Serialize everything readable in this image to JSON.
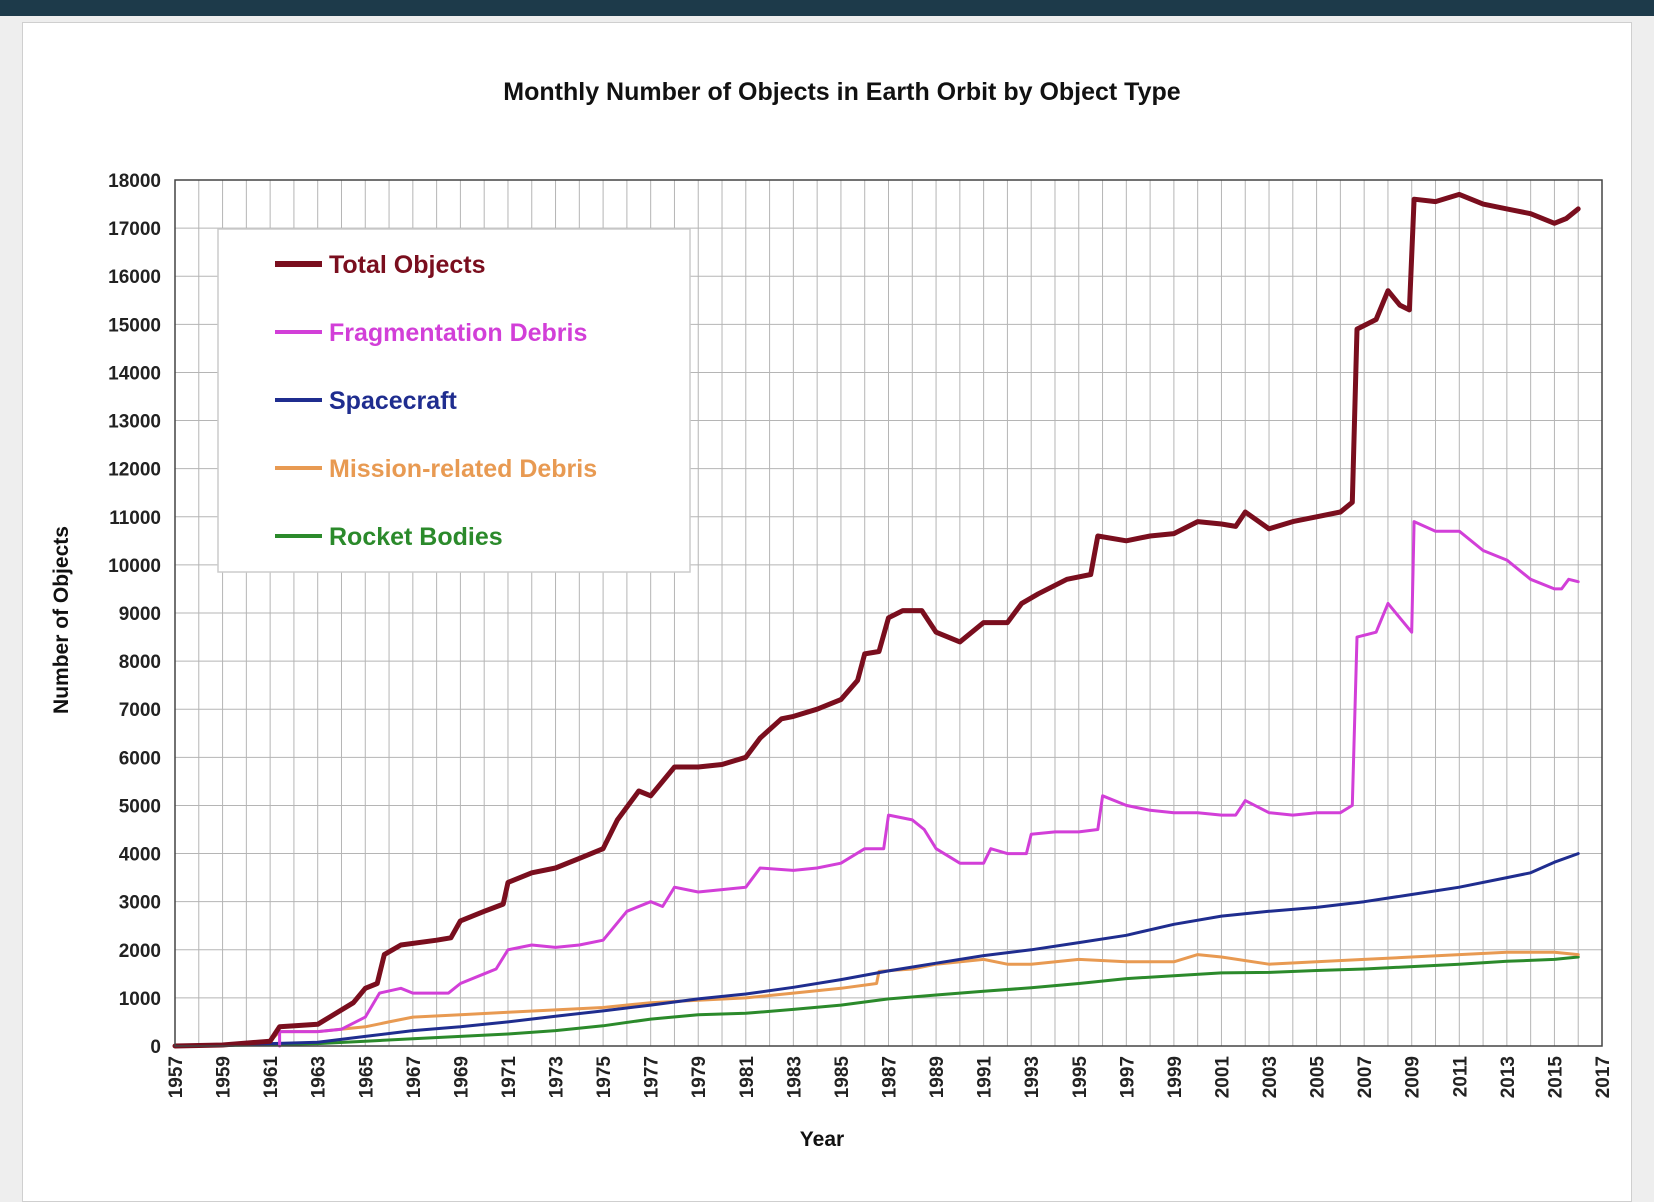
{
  "chart_data": {
    "type": "line",
    "title": "Monthly Number of Objects in Earth Orbit by Object Type",
    "xlabel": "Year",
    "ylabel": "Number of Objects",
    "xlim": [
      1957,
      2017
    ],
    "ylim": [
      0,
      18000
    ],
    "x_ticks": [
      "1957",
      "1959",
      "1961",
      "1963",
      "1965",
      "1967",
      "1969",
      "1971",
      "1973",
      "1975",
      "1977",
      "1979",
      "1981",
      "1983",
      "1985",
      "1987",
      "1989",
      "1991",
      "1993",
      "1995",
      "1997",
      "1999",
      "2001",
      "2003",
      "2005",
      "2007",
      "2009",
      "2011",
      "2013",
      "2015",
      "2017"
    ],
    "y_ticks": [
      "0",
      "1000",
      "2000",
      "3000",
      "4000",
      "5000",
      "6000",
      "7000",
      "8000",
      "9000",
      "10000",
      "11000",
      "12000",
      "13000",
      "14000",
      "15000",
      "16000",
      "17000",
      "18000"
    ],
    "grid": true,
    "legend_position": "top-left",
    "series": [
      {
        "name": "Total Objects",
        "color": "#7a0e1e",
        "width": 5,
        "points": [
          [
            1957,
            0
          ],
          [
            1959,
            20
          ],
          [
            1961,
            100
          ],
          [
            1961.4,
            400
          ],
          [
            1963,
            450
          ],
          [
            1963.5,
            600
          ],
          [
            1964.5,
            900
          ],
          [
            1965,
            1200
          ],
          [
            1965.5,
            1300
          ],
          [
            1965.8,
            1900
          ],
          [
            1966.5,
            2100
          ],
          [
            1968,
            2200
          ],
          [
            1968.6,
            2250
          ],
          [
            1969,
            2600
          ],
          [
            1970,
            2800
          ],
          [
            1970.8,
            2950
          ],
          [
            1971,
            3400
          ],
          [
            1972,
            3600
          ],
          [
            1973,
            3700
          ],
          [
            1974,
            3900
          ],
          [
            1975,
            4100
          ],
          [
            1975.6,
            4700
          ],
          [
            1976.5,
            5300
          ],
          [
            1977,
            5200
          ],
          [
            1978,
            5800
          ],
          [
            1979,
            5800
          ],
          [
            1980,
            5850
          ],
          [
            1981,
            6000
          ],
          [
            1981.6,
            6400
          ],
          [
            1982.5,
            6800
          ],
          [
            1983,
            6850
          ],
          [
            1984,
            7000
          ],
          [
            1985,
            7200
          ],
          [
            1985.7,
            7600
          ],
          [
            1986,
            8150
          ],
          [
            1986.6,
            8200
          ],
          [
            1987,
            8900
          ],
          [
            1987.6,
            9050
          ],
          [
            1988.4,
            9050
          ],
          [
            1989,
            8600
          ],
          [
            1990,
            8400
          ],
          [
            1991,
            8800
          ],
          [
            1992,
            8800
          ],
          [
            1992.6,
            9200
          ],
          [
            1993.3,
            9400
          ],
          [
            1994.5,
            9700
          ],
          [
            1995.5,
            9800
          ],
          [
            1995.8,
            10600
          ],
          [
            1997,
            10500
          ],
          [
            1998,
            10600
          ],
          [
            1999,
            10650
          ],
          [
            2000,
            10900
          ],
          [
            2001,
            10850
          ],
          [
            2001.6,
            10800
          ],
          [
            2002,
            11100
          ],
          [
            2003,
            10750
          ],
          [
            2004,
            10900
          ],
          [
            2005,
            11000
          ],
          [
            2006,
            11100
          ],
          [
            2006.5,
            11300
          ],
          [
            2006.7,
            14900
          ],
          [
            2007.5,
            15100
          ],
          [
            2008,
            15700
          ],
          [
            2008.5,
            15400
          ],
          [
            2008.9,
            15300
          ],
          [
            2009.1,
            17600
          ],
          [
            2010,
            17550
          ],
          [
            2011,
            17700
          ],
          [
            2012,
            17500
          ],
          [
            2013,
            17400
          ],
          [
            2014,
            17300
          ],
          [
            2015,
            17100
          ],
          [
            2015.5,
            17200
          ],
          [
            2016,
            17400
          ]
        ]
      },
      {
        "name": "Fragmentation Debris",
        "color": "#d23fd8",
        "width": 3,
        "points": [
          [
            1961.4,
            0
          ],
          [
            1961.4,
            300
          ],
          [
            1963,
            300
          ],
          [
            1964,
            350
          ],
          [
            1965,
            600
          ],
          [
            1965.6,
            1100
          ],
          [
            1966.5,
            1200
          ],
          [
            1967,
            1100
          ],
          [
            1968.5,
            1100
          ],
          [
            1969,
            1300
          ],
          [
            1970,
            1500
          ],
          [
            1970.5,
            1600
          ],
          [
            1971,
            2000
          ],
          [
            1972,
            2100
          ],
          [
            1973,
            2050
          ],
          [
            1974,
            2100
          ],
          [
            1975,
            2200
          ],
          [
            1976,
            2800
          ],
          [
            1977,
            3000
          ],
          [
            1977.5,
            2900
          ],
          [
            1978,
            3300
          ],
          [
            1979,
            3200
          ],
          [
            1980,
            3250
          ],
          [
            1981,
            3300
          ],
          [
            1981.6,
            3700
          ],
          [
            1983,
            3650
          ],
          [
            1984,
            3700
          ],
          [
            1985,
            3800
          ],
          [
            1986,
            4100
          ],
          [
            1986.8,
            4100
          ],
          [
            1987,
            4800
          ],
          [
            1988,
            4700
          ],
          [
            1988.5,
            4500
          ],
          [
            1989,
            4100
          ],
          [
            1990,
            3800
          ],
          [
            1991,
            3800
          ],
          [
            1991.3,
            4100
          ],
          [
            1992,
            4000
          ],
          [
            1992.8,
            4000
          ],
          [
            1993,
            4400
          ],
          [
            1994,
            4450
          ],
          [
            1995,
            4450
          ],
          [
            1995.8,
            4500
          ],
          [
            1996,
            5200
          ],
          [
            1997,
            5000
          ],
          [
            1998,
            4900
          ],
          [
            1999,
            4850
          ],
          [
            2000,
            4850
          ],
          [
            2001,
            4800
          ],
          [
            2001.6,
            4800
          ],
          [
            2002,
            5100
          ],
          [
            2003,
            4850
          ],
          [
            2004,
            4800
          ],
          [
            2005,
            4850
          ],
          [
            2006,
            4850
          ],
          [
            2006.5,
            5000
          ],
          [
            2006.7,
            8500
          ],
          [
            2007.5,
            8600
          ],
          [
            2008,
            9200
          ],
          [
            2008.5,
            8900
          ],
          [
            2009,
            8600
          ],
          [
            2009.1,
            10900
          ],
          [
            2010,
            10700
          ],
          [
            2011,
            10700
          ],
          [
            2012,
            10300
          ],
          [
            2013,
            10100
          ],
          [
            2014,
            9700
          ],
          [
            2015,
            9500
          ],
          [
            2015.3,
            9500
          ],
          [
            2015.6,
            9700
          ],
          [
            2016,
            9650
          ]
        ]
      },
      {
        "name": "Spacecraft",
        "color": "#1f2d8f",
        "width": 3,
        "points": [
          [
            1957,
            0
          ],
          [
            1959,
            10
          ],
          [
            1961,
            50
          ],
          [
            1963,
            80
          ],
          [
            1965,
            200
          ],
          [
            1967,
            320
          ],
          [
            1969,
            400
          ],
          [
            1971,
            500
          ],
          [
            1973,
            620
          ],
          [
            1975,
            730
          ],
          [
            1977,
            850
          ],
          [
            1979,
            980
          ],
          [
            1981,
            1080
          ],
          [
            1983,
            1220
          ],
          [
            1985,
            1380
          ],
          [
            1987,
            1560
          ],
          [
            1989,
            1720
          ],
          [
            1991,
            1880
          ],
          [
            1993,
            2000
          ],
          [
            1995,
            2150
          ],
          [
            1997,
            2300
          ],
          [
            1999,
            2530
          ],
          [
            2001,
            2700
          ],
          [
            2003,
            2800
          ],
          [
            2005,
            2880
          ],
          [
            2007,
            3000
          ],
          [
            2009,
            3150
          ],
          [
            2011,
            3300
          ],
          [
            2013,
            3500
          ],
          [
            2014,
            3600
          ],
          [
            2015,
            3820
          ],
          [
            2016,
            4000
          ]
        ]
      },
      {
        "name": "Mission-related Debris",
        "color": "#e89a52",
        "width": 3,
        "points": [
          [
            1957,
            0
          ],
          [
            1959,
            20
          ],
          [
            1961,
            100
          ],
          [
            1961.4,
            300
          ],
          [
            1963,
            300
          ],
          [
            1965,
            400
          ],
          [
            1966,
            500
          ],
          [
            1967,
            600
          ],
          [
            1969,
            650
          ],
          [
            1971,
            700
          ],
          [
            1973,
            750
          ],
          [
            1975,
            800
          ],
          [
            1977,
            900
          ],
          [
            1979,
            950
          ],
          [
            1981,
            1000
          ],
          [
            1983,
            1100
          ],
          [
            1985,
            1200
          ],
          [
            1986.5,
            1300
          ],
          [
            1986.6,
            1550
          ],
          [
            1988,
            1600
          ],
          [
            1989,
            1700
          ],
          [
            1991,
            1800
          ],
          [
            1992,
            1700
          ],
          [
            1993,
            1700
          ],
          [
            1995,
            1800
          ],
          [
            1997,
            1750
          ],
          [
            1999,
            1750
          ],
          [
            2000,
            1900
          ],
          [
            2001,
            1850
          ],
          [
            2003,
            1700
          ],
          [
            2005,
            1750
          ],
          [
            2007,
            1800
          ],
          [
            2009,
            1850
          ],
          [
            2011,
            1900
          ],
          [
            2013,
            1950
          ],
          [
            2015,
            1950
          ],
          [
            2016,
            1900
          ]
        ]
      },
      {
        "name": "Rocket Bodies",
        "color": "#2b8a2b",
        "width": 3,
        "points": [
          [
            1957,
            0
          ],
          [
            1959,
            10
          ],
          [
            1961,
            30
          ],
          [
            1963,
            50
          ],
          [
            1965,
            100
          ],
          [
            1967,
            150
          ],
          [
            1969,
            200
          ],
          [
            1971,
            250
          ],
          [
            1973,
            320
          ],
          [
            1975,
            420
          ],
          [
            1977,
            560
          ],
          [
            1979,
            650
          ],
          [
            1981,
            680
          ],
          [
            1983,
            760
          ],
          [
            1985,
            850
          ],
          [
            1987,
            980
          ],
          [
            1989,
            1060
          ],
          [
            1991,
            1140
          ],
          [
            1993,
            1210
          ],
          [
            1995,
            1300
          ],
          [
            1997,
            1400
          ],
          [
            1999,
            1460
          ],
          [
            2001,
            1520
          ],
          [
            2003,
            1530
          ],
          [
            2005,
            1570
          ],
          [
            2007,
            1600
          ],
          [
            2009,
            1650
          ],
          [
            2011,
            1700
          ],
          [
            2013,
            1760
          ],
          [
            2015,
            1800
          ],
          [
            2016,
            1850
          ]
        ]
      }
    ]
  }
}
